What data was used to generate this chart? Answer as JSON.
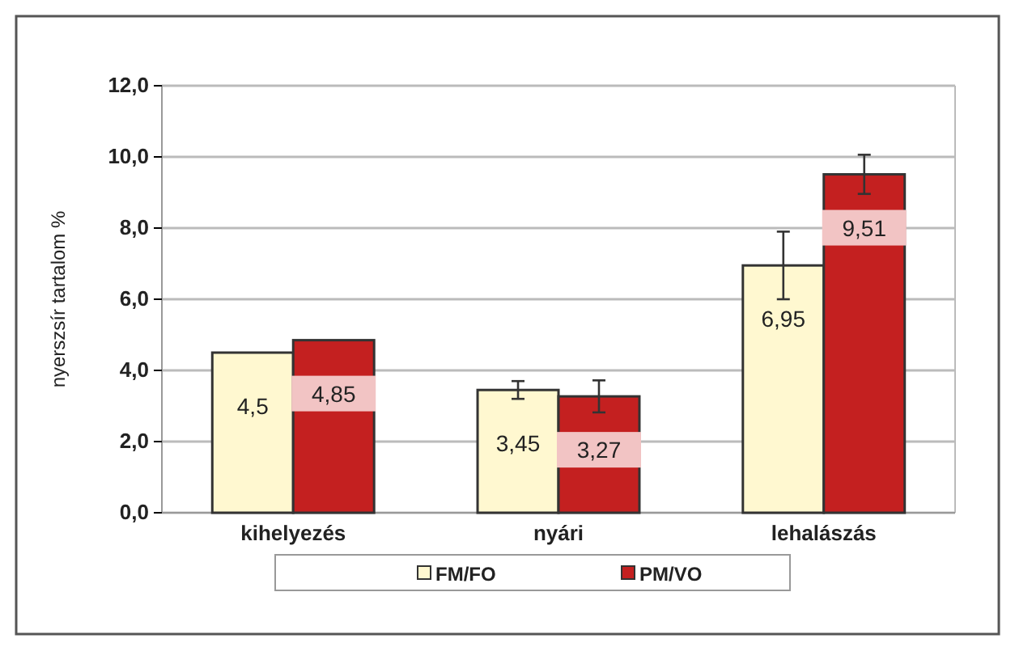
{
  "chart_data": {
    "type": "bar",
    "ylabel": "nyerszsír tartalom %",
    "categories": [
      "kihelyezés",
      "nyári",
      "lehalászás"
    ],
    "series": [
      {
        "name": "FM/FO",
        "color": "#fff8d0",
        "values": [
          4.5,
          3.45,
          6.95
        ],
        "value_labels": [
          "4,5",
          "3,45",
          "6,95"
        ],
        "errors": [
          null,
          0.25,
          0.95
        ]
      },
      {
        "name": "PM/VO",
        "color": "#c42020",
        "values": [
          4.85,
          3.27,
          9.51
        ],
        "value_labels": [
          "4,85",
          "3,27",
          "9,51"
        ],
        "errors": [
          null,
          0.45,
          0.55
        ]
      }
    ],
    "ylim": [
      0,
      12
    ],
    "yticks": [
      {
        "value": 0,
        "label": "0,0"
      },
      {
        "value": 2,
        "label": "2,0"
      },
      {
        "value": 4,
        "label": "4,0"
      },
      {
        "value": 6,
        "label": "6,0"
      },
      {
        "value": 8,
        "label": "8,0"
      },
      {
        "value": 10,
        "label": "10,0"
      },
      {
        "value": 12,
        "label": "12,0"
      }
    ],
    "grid": "y",
    "legend": "bottom"
  }
}
